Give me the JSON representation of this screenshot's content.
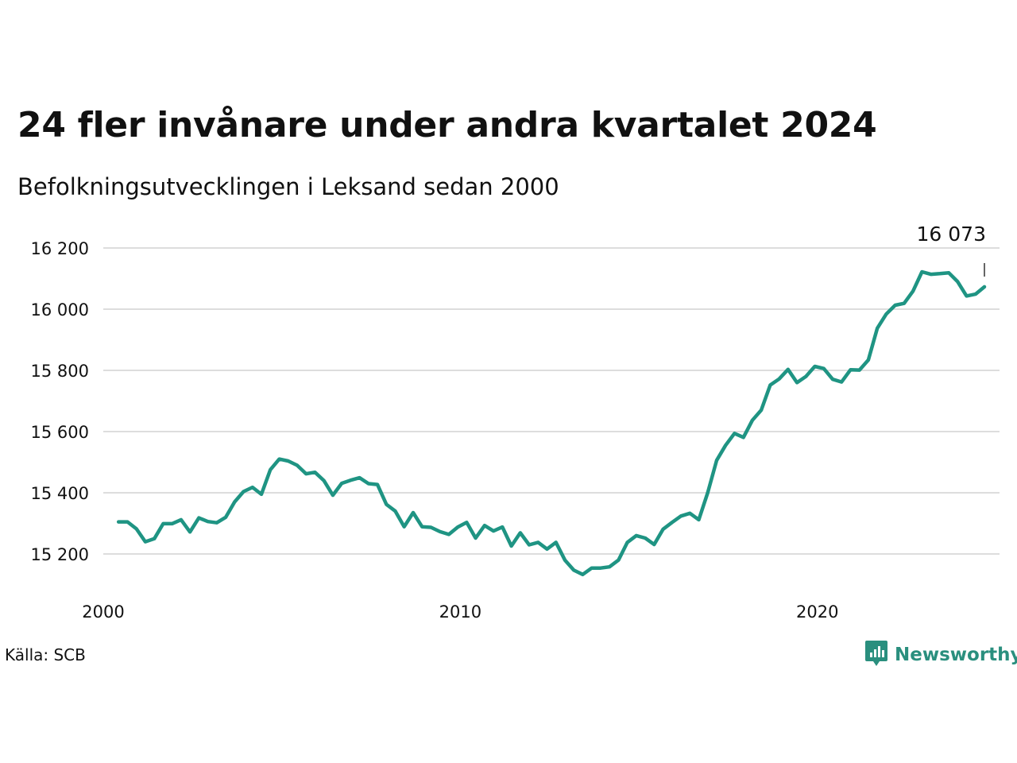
{
  "title": "24 fler invånare under andra kvartalet 2024",
  "subtitle": "Befolkningsutvecklingen i Leksand sedan 2000",
  "source": "Källa: SCB",
  "brand": {
    "name": "Newsworthy",
    "icon": "newsworthy-logo-icon"
  },
  "colors": {
    "line": "#1f9483",
    "grid": "#dddddd",
    "text": "#111111",
    "brand": "#2a8f7e"
  },
  "chart_data": {
    "type": "line",
    "title": "24 fler invånare under andra kvartalet 2024",
    "subtitle": "Befolkningsutvecklingen i Leksand sedan 2000",
    "xlabel": "",
    "ylabel": "",
    "x_start": 2000.25,
    "x_step": 0.25,
    "xlim": [
      2000,
      2025.2
    ],
    "ylim": [
      15120,
      16230
    ],
    "x_ticks": [
      2000,
      2010,
      2020
    ],
    "x_tick_labels": [
      "2000",
      "2010",
      "2020"
    ],
    "y_ticks": [
      15200,
      15400,
      15600,
      15800,
      16000,
      16200
    ],
    "y_tick_labels": [
      "15 200",
      "15 400",
      "15 600",
      "15 800",
      "16 000",
      "16 200"
    ],
    "grid": true,
    "last_label": "16 073",
    "series": [
      {
        "values": [
          15305,
          15305,
          15282,
          15240,
          15250,
          15299,
          15299,
          15312,
          15272,
          15318,
          15306,
          15302,
          15320,
          15370,
          15404,
          15418,
          15395,
          15475,
          15510,
          15504,
          15490,
          15462,
          15467,
          15440,
          15392,
          15431,
          15441,
          15449,
          15430,
          15427,
          15362,
          15340,
          15289,
          15335,
          15289,
          15287,
          15273,
          15264,
          15288,
          15303,
          15252,
          15293,
          15275,
          15288,
          15226,
          15269,
          15230,
          15238,
          15216,
          15238,
          15180,
          15147,
          15133,
          15154,
          15154,
          15158,
          15180,
          15238,
          15260,
          15252,
          15231,
          15281,
          15303,
          15324,
          15333,
          15312,
          15400,
          15506,
          15555,
          15594,
          15581,
          15637,
          15670,
          15752,
          15772,
          15803,
          15760,
          15780,
          15813,
          15806,
          15771,
          15762,
          15802,
          15801,
          15834,
          15938,
          15984,
          16013,
          16019,
          16059,
          16122,
          16114,
          16116,
          16119,
          16090,
          16043,
          16049,
          16073
        ]
      }
    ]
  }
}
